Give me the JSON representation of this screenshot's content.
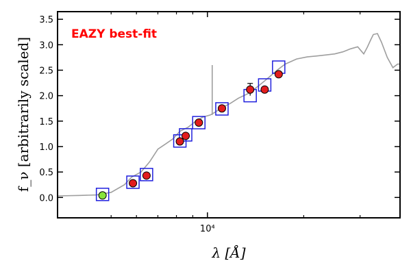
{
  "chart_data": {
    "type": "scatter",
    "title": "",
    "xlabel": "λ [Å]",
    "ylabel": "f_ν [arbitrarily scaled]",
    "x_scale": "log",
    "xlim": [
      3400,
      40000
    ],
    "ylim": [
      -0.4,
      3.65
    ],
    "x_ticks": [
      {
        "value": 10000,
        "label": "10⁴"
      }
    ],
    "x_minor_ticks": [
      5000,
      6000,
      7000,
      8000,
      9000,
      20000,
      30000
    ],
    "y_ticks": [
      0.0,
      0.5,
      1.0,
      1.5,
      2.0,
      2.5,
      3.0,
      3.5
    ],
    "y_tick_labels": [
      "0.0",
      "0.5",
      "1.0",
      "1.5",
      "2.0",
      "2.5",
      "3.0",
      "3.5"
    ],
    "annotation": {
      "text": "EAZY best-fit",
      "color": "#ff0000"
    },
    "colors": {
      "model": "#9e9e9e",
      "box": "#1f1fdd",
      "detection": "#e21d1d",
      "highlight": "#88e43a"
    },
    "model_spectrum": {
      "name": "",
      "x": [
        3400,
        4000,
        4500,
        5000,
        5500,
        5800,
        6200,
        6600,
        7000,
        7400,
        7800,
        8200,
        8700,
        9200,
        9700,
        10200,
        10600,
        11000,
        11800,
        12500,
        13500,
        14500,
        15500,
        16500,
        17500,
        19000,
        20500,
        22000,
        23500,
        25000,
        26500,
        28000,
        29500,
        30800,
        31600,
        32400,
        33000,
        34000,
        35000,
        36500,
        38000,
        39300,
        40000
      ],
      "y": [
        0.03,
        0.04,
        0.05,
        0.1,
        0.25,
        0.4,
        0.5,
        0.7,
        0.95,
        1.05,
        1.15,
        1.3,
        1.38,
        1.5,
        1.58,
        1.62,
        1.68,
        1.75,
        1.85,
        1.95,
        2.05,
        2.2,
        2.35,
        2.5,
        2.62,
        2.72,
        2.76,
        2.78,
        2.8,
        2.82,
        2.86,
        2.92,
        2.96,
        2.82,
        2.95,
        3.1,
        3.2,
        3.22,
        3.05,
        2.75,
        2.55,
        2.62,
        2.62
      ]
    },
    "model_spike": {
      "x": 10350,
      "y_from": 1.62,
      "y_to": 2.6
    },
    "model_bands": [
      {
        "x": 4700,
        "y": 0.06
      },
      {
        "x": 5850,
        "y": 0.3
      },
      {
        "x": 6450,
        "y": 0.45
      },
      {
        "x": 8200,
        "y": 1.11
      },
      {
        "x": 8550,
        "y": 1.23
      },
      {
        "x": 9400,
        "y": 1.47
      },
      {
        "x": 11100,
        "y": 1.74
      },
      {
        "x": 13600,
        "y": 2.0
      },
      {
        "x": 15100,
        "y": 2.21
      },
      {
        "x": 16700,
        "y": 2.56
      }
    ],
    "observed": [
      {
        "x": 4700,
        "y": 0.04,
        "yerr": 0.02,
        "highlight": true
      },
      {
        "x": 5850,
        "y": 0.28,
        "yerr": 0.02,
        "highlight": false
      },
      {
        "x": 6450,
        "y": 0.43,
        "yerr": 0.02,
        "highlight": false
      },
      {
        "x": 8200,
        "y": 1.1,
        "yerr": 0.03,
        "highlight": false
      },
      {
        "x": 8550,
        "y": 1.21,
        "yerr": 0.03,
        "highlight": false
      },
      {
        "x": 9400,
        "y": 1.47,
        "yerr": 0.03,
        "highlight": false
      },
      {
        "x": 11100,
        "y": 1.75,
        "yerr": 0.03,
        "highlight": false
      },
      {
        "x": 13600,
        "y": 2.12,
        "yerr": 0.12,
        "highlight": false
      },
      {
        "x": 15100,
        "y": 2.12,
        "yerr": 0.03,
        "highlight": false
      },
      {
        "x": 16700,
        "y": 2.42,
        "yerr": 0.03,
        "highlight": false
      }
    ]
  }
}
